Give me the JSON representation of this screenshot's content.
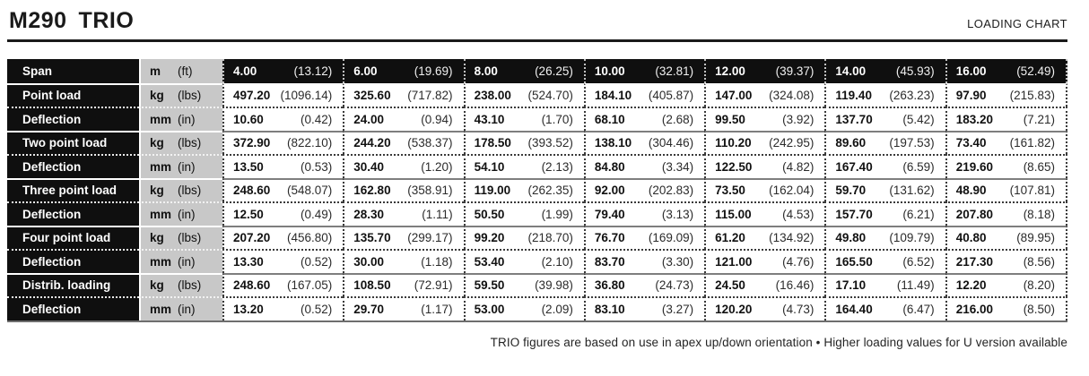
{
  "header": {
    "model": "M290",
    "variant": "TRIO",
    "right_label": "LOADING CHART"
  },
  "table": {
    "rows": [
      {
        "type": "header",
        "label": "Span",
        "unit": "m",
        "unit_alt": "(ft)",
        "cells": [
          [
            "4.00",
            "(13.12)"
          ],
          [
            "6.00",
            "(19.69)"
          ],
          [
            "8.00",
            "(26.25)"
          ],
          [
            "10.00",
            "(32.81)"
          ],
          [
            "12.00",
            "(39.37)"
          ],
          [
            "14.00",
            "(45.93)"
          ],
          [
            "16.00",
            "(52.49)"
          ]
        ]
      },
      {
        "type": "load",
        "label": "Point load",
        "unit": "kg",
        "unit_alt": "(lbs)",
        "cells": [
          [
            "497.20",
            "(1096.14)"
          ],
          [
            "325.60",
            "(717.82)"
          ],
          [
            "238.00",
            "(524.70)"
          ],
          [
            "184.10",
            "(405.87)"
          ],
          [
            "147.00",
            "(324.08)"
          ],
          [
            "119.40",
            "(263.23)"
          ],
          [
            "97.90",
            "(215.83)"
          ]
        ]
      },
      {
        "type": "deflection",
        "label": "Deflection",
        "unit": "mm",
        "unit_alt": "(in)",
        "cells": [
          [
            "10.60",
            "(0.42)"
          ],
          [
            "24.00",
            "(0.94)"
          ],
          [
            "43.10",
            "(1.70)"
          ],
          [
            "68.10",
            "(2.68)"
          ],
          [
            "99.50",
            "(3.92)"
          ],
          [
            "137.70",
            "(5.42)"
          ],
          [
            "183.20",
            "(7.21)"
          ]
        ]
      },
      {
        "type": "load",
        "label": "Two point load",
        "unit": "kg",
        "unit_alt": "(lbs)",
        "cells": [
          [
            "372.90",
            "(822.10)"
          ],
          [
            "244.20",
            "(538.37)"
          ],
          [
            "178.50",
            "(393.52)"
          ],
          [
            "138.10",
            "(304.46)"
          ],
          [
            "110.20",
            "(242.95)"
          ],
          [
            "89.60",
            "(197.53)"
          ],
          [
            "73.40",
            "(161.82)"
          ]
        ]
      },
      {
        "type": "deflection",
        "label": "Deflection",
        "unit": "mm",
        "unit_alt": "(in)",
        "cells": [
          [
            "13.50",
            "(0.53)"
          ],
          [
            "30.40",
            "(1.20)"
          ],
          [
            "54.10",
            "(2.13)"
          ],
          [
            "84.80",
            "(3.34)"
          ],
          [
            "122.50",
            "(4.82)"
          ],
          [
            "167.40",
            "(6.59)"
          ],
          [
            "219.60",
            "(8.65)"
          ]
        ]
      },
      {
        "type": "load",
        "label": "Three point load",
        "unit": "kg",
        "unit_alt": "(lbs)",
        "cells": [
          [
            "248.60",
            "(548.07)"
          ],
          [
            "162.80",
            "(358.91)"
          ],
          [
            "119.00",
            "(262.35)"
          ],
          [
            "92.00",
            "(202.83)"
          ],
          [
            "73.50",
            "(162.04)"
          ],
          [
            "59.70",
            "(131.62)"
          ],
          [
            "48.90",
            "(107.81)"
          ]
        ]
      },
      {
        "type": "deflection",
        "label": "Deflection",
        "unit": "mm",
        "unit_alt": "(in)",
        "cells": [
          [
            "12.50",
            "(0.49)"
          ],
          [
            "28.30",
            "(1.11)"
          ],
          [
            "50.50",
            "(1.99)"
          ],
          [
            "79.40",
            "(3.13)"
          ],
          [
            "115.00",
            "(4.53)"
          ],
          [
            "157.70",
            "(6.21)"
          ],
          [
            "207.80",
            "(8.18)"
          ]
        ]
      },
      {
        "type": "load",
        "label": "Four point load",
        "unit": "kg",
        "unit_alt": "(lbs)",
        "cells": [
          [
            "207.20",
            "(456.80)"
          ],
          [
            "135.70",
            "(299.17)"
          ],
          [
            "99.20",
            "(218.70)"
          ],
          [
            "76.70",
            "(169.09)"
          ],
          [
            "61.20",
            "(134.92)"
          ],
          [
            "49.80",
            "(109.79)"
          ],
          [
            "40.80",
            "(89.95)"
          ]
        ]
      },
      {
        "type": "deflection",
        "label": "Deflection",
        "unit": "mm",
        "unit_alt": "(in)",
        "cells": [
          [
            "13.30",
            "(0.52)"
          ],
          [
            "30.00",
            "(1.18)"
          ],
          [
            "53.40",
            "(2.10)"
          ],
          [
            "83.70",
            "(3.30)"
          ],
          [
            "121.00",
            "(4.76)"
          ],
          [
            "165.50",
            "(6.52)"
          ],
          [
            "217.30",
            "(8.56)"
          ]
        ]
      },
      {
        "type": "load",
        "label": "Distrib. loading",
        "unit": "kg",
        "unit_alt": "(lbs)",
        "cells": [
          [
            "248.60",
            "(167.05)"
          ],
          [
            "108.50",
            "(72.91)"
          ],
          [
            "59.50",
            "(39.98)"
          ],
          [
            "36.80",
            "(24.73)"
          ],
          [
            "24.50",
            "(16.46)"
          ],
          [
            "17.10",
            "(11.49)"
          ],
          [
            "12.20",
            "(8.20)"
          ]
        ]
      },
      {
        "type": "deflection",
        "label": "Deflection",
        "unit": "mm",
        "unit_alt": "(in)",
        "cells": [
          [
            "13.20",
            "(0.52)"
          ],
          [
            "29.70",
            "(1.17)"
          ],
          [
            "53.00",
            "(2.09)"
          ],
          [
            "83.10",
            "(3.27)"
          ],
          [
            "120.20",
            "(4.73)"
          ],
          [
            "164.40",
            "(6.47)"
          ],
          [
            "216.00",
            "(8.50)"
          ]
        ]
      }
    ]
  },
  "footer": {
    "note": "TRIO figures are based on use in apex up/down orientation • Higher loading values for U version available"
  }
}
